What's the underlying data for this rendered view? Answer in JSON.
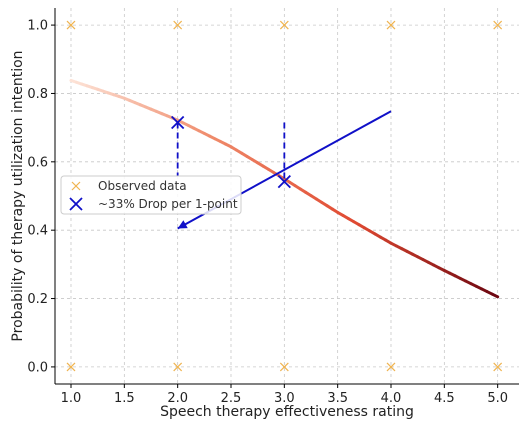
{
  "chart_data": {
    "type": "line",
    "xlabel": "Speech therapy effectiveness rating",
    "ylabel": "Probability of therapy utilization intention",
    "xlim": [
      0.85,
      5.2
    ],
    "ylim": [
      -0.05,
      1.05
    ],
    "x_ticks": [
      "1.0",
      "1.5",
      "2.0",
      "2.5",
      "3.0",
      "3.5",
      "4.0",
      "4.5",
      "5.0"
    ],
    "y_ticks": [
      "0.0",
      "0.2",
      "0.4",
      "0.6",
      "0.8",
      "1.0"
    ],
    "grid": true,
    "grid_style": "dashed",
    "legend_position": "center-left",
    "series": [
      {
        "kind": "curve",
        "color_scale": [
          "#fde4d8",
          "#ef8a6a",
          "#e04a32",
          "#6b0610"
        ],
        "x": [
          1.0,
          1.5,
          2.0,
          2.5,
          3.0,
          3.5,
          4.0,
          4.5,
          5.0
        ],
        "values": [
          0.838,
          0.786,
          0.722,
          0.644,
          0.55,
          0.452,
          0.362,
          0.282,
          0.205
        ]
      },
      {
        "name": "Observed data",
        "kind": "scatter",
        "marker": "x",
        "color": "#f0b450",
        "x": [
          1,
          2,
          3,
          4,
          5,
          1,
          2,
          3,
          4,
          5
        ],
        "values": [
          1,
          1,
          1,
          1,
          1,
          0,
          0,
          0,
          0,
          0
        ]
      },
      {
        "name": "~33% Drop per 1-point",
        "kind": "marker",
        "marker": "x",
        "color": "#1010c8",
        "x": [
          2.0,
          3.0
        ],
        "values": [
          0.715,
          0.542
        ]
      }
    ],
    "annotations": [
      {
        "kind": "dashed_vline",
        "color": "#1010c8",
        "x": 2.0,
        "y_from": 0.715,
        "y_to": 0.56
      },
      {
        "kind": "dashed_vline",
        "color": "#1010c8",
        "x": 3.0,
        "y_from": 0.715,
        "y_to": 0.55
      },
      {
        "kind": "arrow",
        "color": "#1010c8",
        "from": [
          4.0,
          0.748
        ],
        "to": [
          2.0,
          0.405
        ]
      }
    ]
  }
}
